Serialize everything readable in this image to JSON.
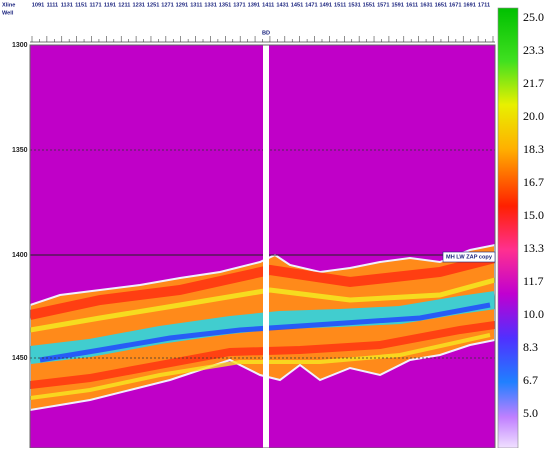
{
  "header": {
    "xline": "Xline",
    "well": "Well"
  },
  "xline_labels": [
    "1091",
    "1111",
    "1131",
    "1151",
    "1171",
    "1191",
    "1211",
    "1231",
    "1251",
    "1271",
    "1291",
    "1311",
    "1331",
    "1351",
    "1371",
    "1391",
    "1411",
    "1431",
    "1451",
    "1471",
    "1491",
    "1511",
    "1531",
    "1551",
    "1571",
    "1591",
    "1611",
    "1631",
    "1651",
    "1671",
    "1691",
    "1711"
  ],
  "well_label": "BD",
  "depth_labels": [
    "1300",
    "1350",
    "1400",
    "1450"
  ],
  "annotation": "MH LW ZAP copy",
  "colorbar_labels": [
    "25.0",
    "23.3",
    "21.7",
    "20.0",
    "18.3",
    "16.7",
    "15.0",
    "13.3",
    "11.7",
    "10.0",
    "8.3",
    "6.7",
    "5.0"
  ]
}
